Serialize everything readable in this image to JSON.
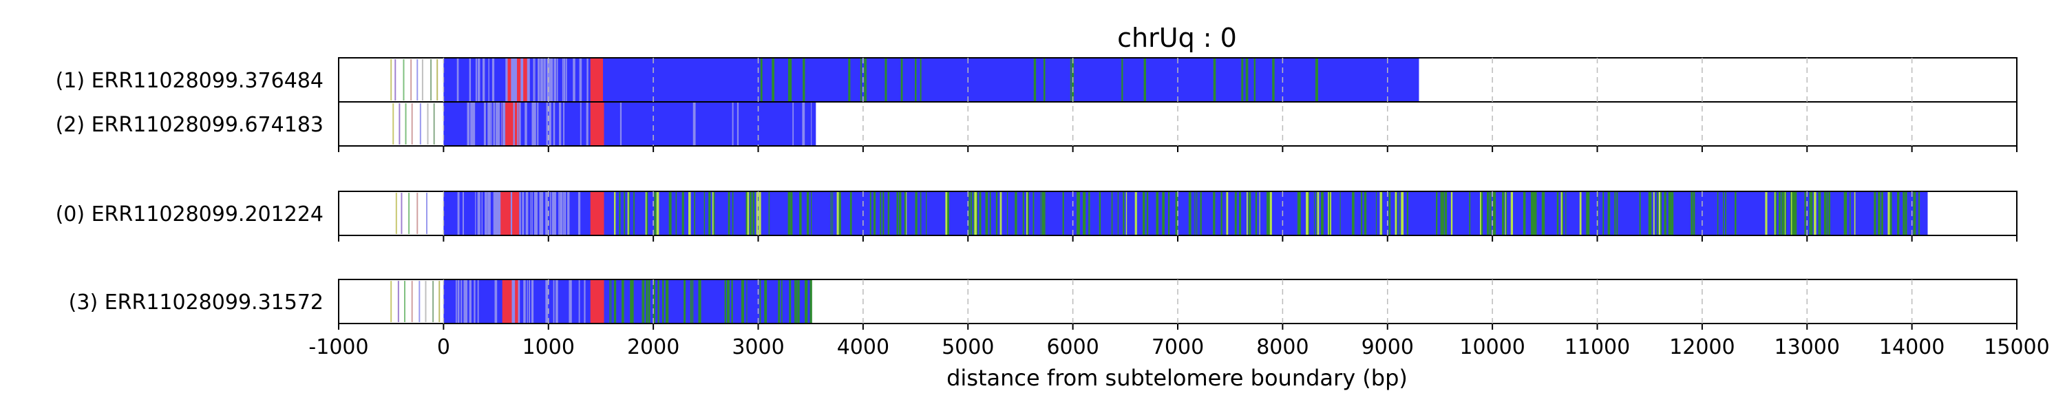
{
  "chart_data": {
    "type": "track",
    "title": "chrUq : 0",
    "xlabel": "distance from subtelomere boundary (bp)",
    "xlim": [
      -1000,
      15000
    ],
    "xticks": [
      "-1000",
      "0",
      "1000",
      "2000",
      "3000",
      "4000",
      "5000",
      "6000",
      "7000",
      "8000",
      "9000",
      "10000",
      "11000",
      "12000",
      "13000",
      "14000",
      "15000"
    ],
    "grid": "vertical dashed at each x tick",
    "colors": {
      "blue": "#3333ff",
      "green": "#2e8b2e",
      "red": "#ee3344",
      "lightblue": "#8a8af0",
      "yellowgreen": "#b8e34a",
      "purple": "#9955cc",
      "grid": "#bbbbbb"
    },
    "groups": [
      {
        "rows": [
          {
            "label": "(1) ERR11028099.376484",
            "main_start": 0,
            "main_end": 9300,
            "base": "blue",
            "regions": [
              {
                "start": 600,
                "end": 800,
                "color": "red"
              },
              {
                "start": 1400,
                "end": 1520,
                "color": "red"
              },
              {
                "start": 100,
                "end": 1400,
                "color": "lightblue",
                "density": 0.45
              },
              {
                "start": 3000,
                "end": 4500,
                "color": "green",
                "density": 0.12
              },
              {
                "start": 4500,
                "end": 9300,
                "color": "green",
                "density": 0.04
              }
            ],
            "prefix_lines": [
              -500,
              -460,
              -380,
              -310,
              -250,
              -200,
              -120,
              -60
            ]
          },
          {
            "label": "(2) ERR11028099.674183",
            "main_start": 0,
            "main_end": 3550,
            "base": "blue",
            "regions": [
              {
                "start": 560,
                "end": 730,
                "color": "red"
              },
              {
                "start": 1400,
                "end": 1530,
                "color": "red"
              },
              {
                "start": 100,
                "end": 1400,
                "color": "lightblue",
                "density": 0.4
              },
              {
                "start": 1600,
                "end": 3550,
                "color": "lightblue",
                "density": 0.05
              }
            ],
            "prefix_lines": [
              -480,
              -420,
              -360,
              -300,
              -220,
              -150,
              -90
            ]
          }
        ]
      },
      {
        "rows": [
          {
            "label": "(0) ERR11028099.201224",
            "main_start": 0,
            "main_end": 14150,
            "base": "blue",
            "regions": [
              {
                "start": 540,
                "end": 720,
                "color": "red"
              },
              {
                "start": 1400,
                "end": 1530,
                "color": "red"
              },
              {
                "start": 100,
                "end": 1400,
                "color": "lightblue",
                "density": 0.4
              },
              {
                "start": 1600,
                "end": 14150,
                "color": "green",
                "density": 0.22
              },
              {
                "start": 1600,
                "end": 14150,
                "color": "yellowgreen",
                "density": 0.05
              }
            ],
            "prefix_lines": [
              -450,
              -400,
              -330,
              -250,
              -160
            ]
          }
        ]
      },
      {
        "rows": [
          {
            "label": "(3) ERR11028099.31572",
            "main_start": 0,
            "main_end": 3500,
            "base": "blue",
            "regions": [
              {
                "start": 560,
                "end": 720,
                "color": "red"
              },
              {
                "start": 1400,
                "end": 1530,
                "color": "red"
              },
              {
                "start": 100,
                "end": 1400,
                "color": "lightblue",
                "density": 0.35
              },
              {
                "start": 1550,
                "end": 3500,
                "color": "green",
                "density": 0.3
              }
            ],
            "prefix_lines": [
              -500,
              -430,
              -370,
              -300,
              -230,
              -170,
              -100,
              -40
            ]
          }
        ]
      }
    ]
  }
}
